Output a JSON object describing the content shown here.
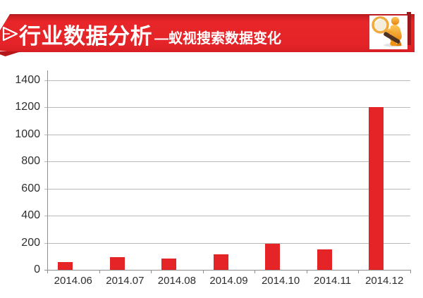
{
  "header": {
    "title": "行业数据分析",
    "subtitle": "—蚁视搜索数据变化",
    "banner_color": "#e42428",
    "banner_dark_color": "#9c181a",
    "text_color": "#ffffff",
    "arrow_icon": "chevron-right-icon",
    "badge_icon": "magnifier-figure-icon"
  },
  "chart_data": {
    "type": "bar",
    "categories": [
      "2014.06",
      "2014.07",
      "2014.08",
      "2014.09",
      "2014.10",
      "2014.11",
      "2014.12"
    ],
    "values": [
      60,
      95,
      85,
      115,
      195,
      150,
      1200
    ],
    "title": "",
    "xlabel": "",
    "ylabel": "",
    "ylim": [
      0,
      1400
    ],
    "yticks": [
      0,
      200,
      400,
      600,
      800,
      1000,
      1200,
      1400
    ],
    "grid": true,
    "legend": false,
    "bar_color": "#e42427",
    "gridline_color": "#b9b9b9",
    "axis_color": "#8f8f8f",
    "label_color": "#2e2e2e"
  }
}
